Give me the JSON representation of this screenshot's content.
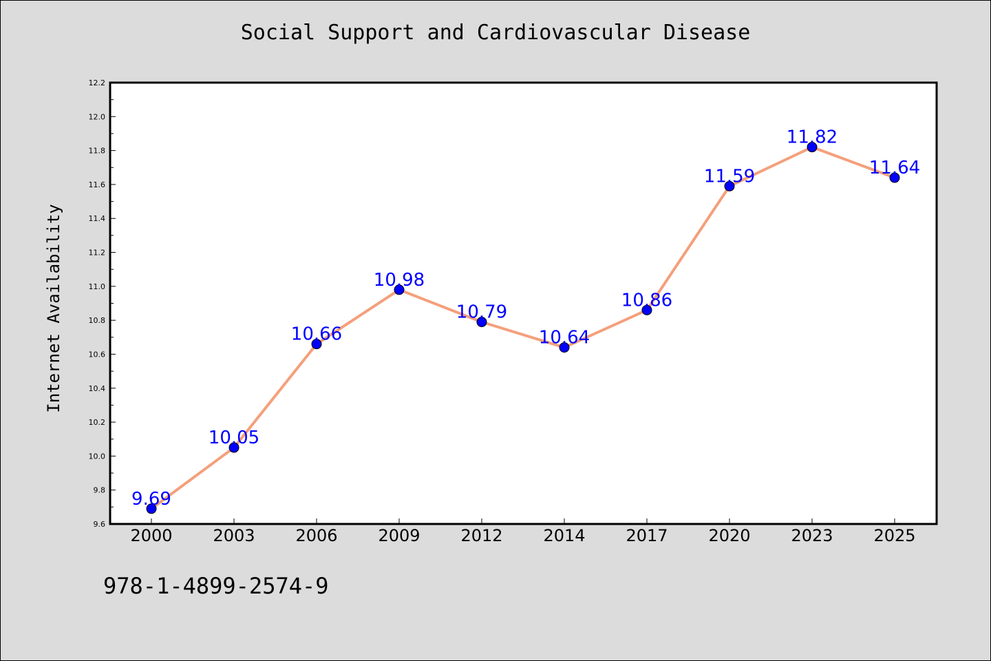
{
  "chart_data": {
    "type": "line",
    "title": "Social Support and Cardiovascular Disease",
    "xlabel": "",
    "ylabel": "Internet Availability",
    "categories": [
      "2000",
      "2003",
      "2006",
      "2009",
      "2012",
      "2014",
      "2017",
      "2020",
      "2023",
      "2025"
    ],
    "series": [
      {
        "values": [
          9.69,
          10.05,
          10.66,
          10.98,
          10.79,
          10.64,
          10.86,
          11.59,
          11.82,
          11.64
        ],
        "labels": [
          "9.69",
          "10.05",
          "10.66",
          "10.98",
          "10.79",
          "10.64",
          "10.86",
          "11.59",
          "11.82",
          "11.64"
        ],
        "line_color": "#f4a07c",
        "marker_color": "#0000ff"
      }
    ],
    "ylim": [
      9.6,
      12.2
    ],
    "yticks": [
      "9.6",
      "9.8",
      "10.0",
      "10.2",
      "10.4",
      "10.6",
      "10.8",
      "11.0",
      "11.2",
      "11.4",
      "11.6",
      "11.8",
      "12.0",
      "12.2"
    ],
    "grid": false,
    "legend": "none"
  },
  "footer": {
    "code": "978-1-4899-2574-9"
  },
  "colors": {
    "background": "#dcdcdc",
    "plot_background": "#ffffff",
    "line": "#f4a07c",
    "marker": "#0000ff",
    "data_label": "#0000ff"
  }
}
